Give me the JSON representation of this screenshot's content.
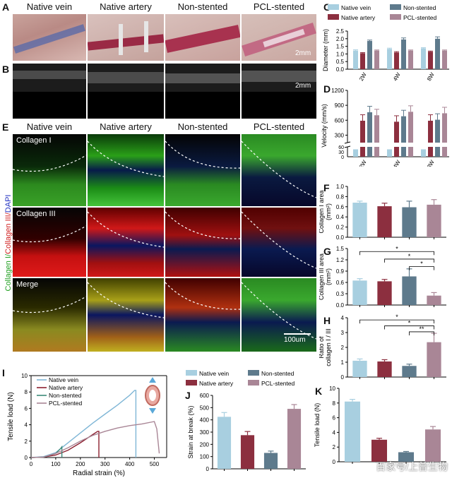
{
  "panel_letters": {
    "A": "A",
    "B": "B",
    "C": "C",
    "D": "D",
    "E": "E",
    "F": "F",
    "G": "G",
    "H": "H",
    "I": "I",
    "J": "J",
    "K": "K"
  },
  "groups": [
    "Native vein",
    "Native artery",
    "Non-stented",
    "PCL-stented"
  ],
  "colors": {
    "native_vein": "#a8cfe0",
    "native_artery": "#8c2f3f",
    "non_stented": "#5e7a8c",
    "pcl_stented": "#a98696"
  },
  "panelA": {
    "scale": "2mm"
  },
  "panelB": {
    "scale": "2mm"
  },
  "panelE": {
    "rows": [
      "Collagen I",
      "Collagen III",
      "Merge"
    ],
    "side_label": {
      "green": "Collagen I/",
      "red": "Collagen III/",
      "blue": "DAPI"
    },
    "scale": "100um"
  },
  "chart_data": [
    {
      "panel": "C",
      "type": "bar",
      "categories": [
        "2W",
        "4W",
        "8W"
      ],
      "ylabel": "Diameter (mm)",
      "ylim": [
        0,
        2.5
      ],
      "yticks": [
        "0.0",
        "0.5",
        "1.0",
        "1.5",
        "2.0",
        "2.5"
      ],
      "legend": [
        "Native vein",
        "Non-stented",
        "Native artery",
        "PCL-stented"
      ],
      "series": [
        {
          "name": "Native vein",
          "values": [
            1.22,
            1.33,
            1.37
          ],
          "err": [
            0.05,
            0.05,
            0.04
          ]
        },
        {
          "name": "Native artery",
          "values": [
            1.05,
            1.1,
            1.15
          ],
          "err": [
            0.04,
            0.05,
            0.04
          ]
        },
        {
          "name": "Non-stented",
          "values": [
            1.85,
            1.95,
            2.0
          ],
          "err": [
            0.06,
            0.1,
            0.12
          ]
        },
        {
          "name": "PCL-stented",
          "values": [
            1.22,
            1.22,
            1.22
          ],
          "err": [
            0.04,
            0.04,
            0.04
          ]
        }
      ]
    },
    {
      "panel": "D",
      "type": "bar",
      "categories": [
        "2W",
        "4W",
        "8W"
      ],
      "ylabel": "Velocity (mm/s)",
      "yticks_upper": [
        "300",
        "600",
        "900",
        "1200"
      ],
      "yticks_lower": [
        "0",
        "30",
        "60"
      ],
      "series": [
        {
          "name": "Native vein",
          "values": [
            45,
            45,
            45
          ]
        },
        {
          "name": "Native artery",
          "values": [
            590,
            570,
            590
          ]
        },
        {
          "name": "Non-stented",
          "values": [
            760,
            680,
            610
          ]
        },
        {
          "name": "PCL-stented",
          "values": [
            700,
            770,
            740
          ]
        }
      ]
    },
    {
      "panel": "F",
      "type": "bar",
      "ylabel": "Collagen I area (mm²)",
      "ylim": [
        0,
        1.0
      ],
      "yticks": [
        "0.0",
        "0.2",
        "0.4",
        "0.6",
        "0.8",
        "1.0"
      ],
      "values": [
        0.68,
        0.61,
        0.59,
        0.64
      ],
      "err": [
        0.03,
        0.06,
        0.12,
        0.1
      ]
    },
    {
      "panel": "G",
      "type": "bar",
      "ylabel": "Collagen III area (mm²)",
      "ylim": [
        0,
        1.5
      ],
      "yticks": [
        "0.0",
        "0.3",
        "0.6",
        "0.9",
        "1.2",
        "1.5"
      ],
      "values": [
        0.65,
        0.63,
        0.76,
        0.25
      ],
      "err": [
        0.05,
        0.05,
        0.2,
        0.08
      ],
      "significance": [
        "*",
        "*",
        "*"
      ]
    },
    {
      "panel": "H",
      "type": "bar",
      "ylabel": "Ratio of collagen I / III",
      "ylim": [
        0,
        4
      ],
      "yticks": [
        "0",
        "1",
        "2",
        "3",
        "4"
      ],
      "values": [
        1.1,
        1.05,
        0.75,
        2.35
      ],
      "err": [
        0.12,
        0.12,
        0.12,
        0.6
      ],
      "significance": [
        "*",
        "*",
        "**"
      ]
    },
    {
      "panel": "I",
      "type": "line",
      "xlabel": "Radial strain (%)",
      "ylabel": "Tensile load (N)",
      "xlim": [
        0,
        550
      ],
      "ylim": [
        0,
        10
      ],
      "xticks": [
        "0",
        "100",
        "200",
        "300",
        "400",
        "500"
      ],
      "yticks": [
        "0",
        "2",
        "4",
        "6",
        "8",
        "10"
      ],
      "legend": [
        "Native vein",
        "Native artery",
        "Non-stented",
        "PCL-stented"
      ],
      "series": [
        {
          "name": "Native vein",
          "x": [
            0,
            50,
            100,
            150,
            200,
            250,
            300,
            350,
            400,
            420,
            425,
            425
          ],
          "y": [
            0,
            0.1,
            0.6,
            1.8,
            3.0,
            4.2,
            5.3,
            6.4,
            7.6,
            8.2,
            8.2,
            0
          ]
        },
        {
          "name": "Native artery",
          "x": [
            0,
            50,
            100,
            150,
            200,
            250,
            270,
            275,
            275
          ],
          "y": [
            0,
            0.05,
            0.3,
            0.9,
            1.8,
            2.8,
            3.2,
            3.2,
            0
          ]
        },
        {
          "name": "Non-stented",
          "x": [
            0,
            50,
            100,
            120,
            125,
            125
          ],
          "y": [
            0,
            0.05,
            0.5,
            1.1,
            1.3,
            0
          ]
        },
        {
          "name": "PCL-stented",
          "x": [
            0,
            50,
            100,
            150,
            200,
            250,
            300,
            350,
            400,
            450,
            500,
            510,
            520
          ],
          "y": [
            0,
            0.05,
            0.5,
            1.2,
            2.0,
            2.7,
            3.2,
            3.6,
            3.9,
            4.1,
            4.4,
            3.5,
            0.5
          ]
        }
      ]
    },
    {
      "panel": "J",
      "type": "bar",
      "ylabel": "Strain at break (%)",
      "ylim": [
        0,
        600
      ],
      "yticks": [
        "0",
        "100",
        "200",
        "300",
        "400",
        "500",
        "600"
      ],
      "legend": [
        "Native vein",
        "Non-stented",
        "Native artery",
        "PCL-stented"
      ],
      "values": [
        425,
        275,
        130,
        490
      ],
      "err": [
        35,
        30,
        15,
        35
      ]
    },
    {
      "panel": "K",
      "type": "bar",
      "ylabel": "Tensile load (N)",
      "ylim": [
        0,
        10
      ],
      "yticks": [
        "0",
        "2",
        "4",
        "6",
        "8",
        "10"
      ],
      "values": [
        8.2,
        3.0,
        1.3,
        4.4
      ],
      "err": [
        0.3,
        0.2,
        0.1,
        0.4
      ]
    }
  ],
  "watermark": "百家号/上普生物"
}
